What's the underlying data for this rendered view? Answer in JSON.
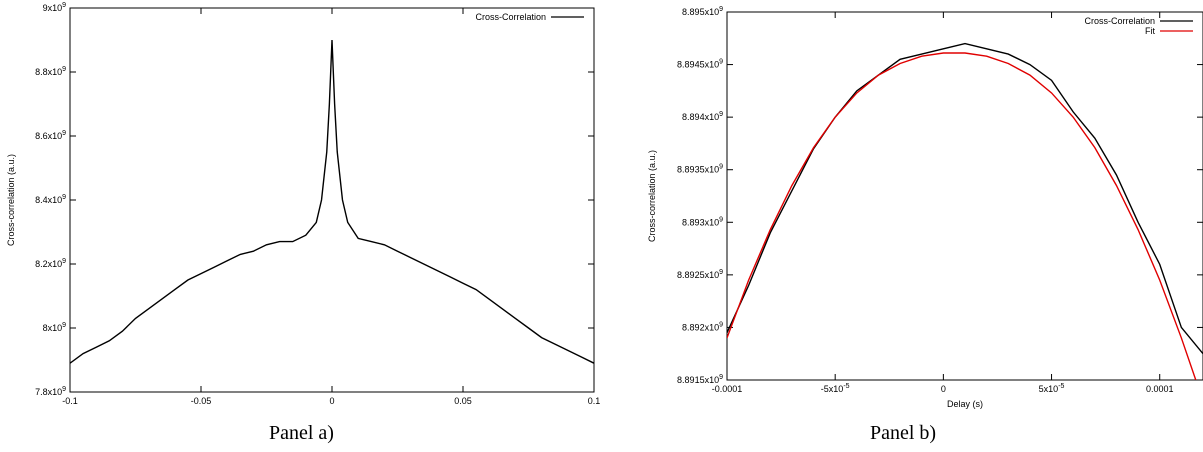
{
  "chart_data": [
    {
      "type": "line",
      "caption": "Panel a)",
      "xlabel": "",
      "ylabel": "Cross-correlation (a.u.)",
      "xlim": [
        -0.1,
        0.1
      ],
      "ylim": [
        7800000000.0,
        9000000000.0
      ],
      "xticks": [
        "-0.1",
        "-0.05",
        "0",
        "0.05",
        "0.1"
      ],
      "yticks": [
        {
          "m": "7.8x10",
          "e": "9"
        },
        {
          "m": "8x10",
          "e": "9"
        },
        {
          "m": "8.2x10",
          "e": "9"
        },
        {
          "m": "8.4x10",
          "e": "9"
        },
        {
          "m": "8.6x10",
          "e": "9"
        },
        {
          "m": "8.8x10",
          "e": "9"
        },
        {
          "m": "9x10",
          "e": "9"
        }
      ],
      "legend": "top-right",
      "series": [
        {
          "name": "Cross-Correlation",
          "color": "#000000",
          "x": [
            -0.1,
            -0.095,
            -0.09,
            -0.085,
            -0.08,
            -0.075,
            -0.07,
            -0.065,
            -0.06,
            -0.055,
            -0.05,
            -0.045,
            -0.04,
            -0.035,
            -0.03,
            -0.025,
            -0.02,
            -0.015,
            -0.01,
            -0.006,
            -0.004,
            -0.002,
            -0.001,
            0,
            0.001,
            0.002,
            0.004,
            0.006,
            0.01,
            0.015,
            0.02,
            0.025,
            0.03,
            0.035,
            0.04,
            0.045,
            0.05,
            0.055,
            0.06,
            0.065,
            0.07,
            0.075,
            0.08,
            0.085,
            0.09,
            0.095,
            0.1
          ],
          "y": [
            7890000000.0,
            7920000000.0,
            7940000000.0,
            7960000000.0,
            7990000000.0,
            8030000000.0,
            8060000000.0,
            8090000000.0,
            8120000000.0,
            8150000000.0,
            8170000000.0,
            8190000000.0,
            8210000000.0,
            8230000000.0,
            8240000000.0,
            8260000000.0,
            8270000000.0,
            8270000000.0,
            8290000000.0,
            8330000000.0,
            8400000000.0,
            8550000000.0,
            8700000000.0,
            8900000000.0,
            8700000000.0,
            8550000000.0,
            8400000000.0,
            8330000000.0,
            8280000000.0,
            8270000000.0,
            8260000000.0,
            8240000000.0,
            8220000000.0,
            8200000000.0,
            8180000000.0,
            8160000000.0,
            8140000000.0,
            8120000000.0,
            8090000000.0,
            8060000000.0,
            8030000000.0,
            8000000000.0,
            7970000000.0,
            7950000000.0,
            7930000000.0,
            7910000000.0,
            7890000000.0
          ]
        }
      ]
    },
    {
      "type": "line",
      "caption": "Panel b)",
      "xlabel": "Delay (s)",
      "ylabel": "Cross-correlation (a.u.)",
      "xlim": [
        -0.0001,
        0.00012
      ],
      "ylim": [
        8891500000.0,
        8895000000.0
      ],
      "xticks": [
        {
          "v": -0.0001,
          "m": "-0.0001",
          "e": ""
        },
        {
          "v": -5e-05,
          "m": "-5x10",
          "e": "-5"
        },
        {
          "v": 0,
          "m": "0",
          "e": ""
        },
        {
          "v": 5e-05,
          "m": "5x10",
          "e": "-5"
        },
        {
          "v": 0.0001,
          "m": "0.0001",
          "e": ""
        }
      ],
      "yticks": [
        {
          "m": "8.8915x10",
          "e": "9"
        },
        {
          "m": "8.892x10",
          "e": "9"
        },
        {
          "m": "8.8925x10",
          "e": "9"
        },
        {
          "m": "8.893x10",
          "e": "9"
        },
        {
          "m": "8.8935x10",
          "e": "9"
        },
        {
          "m": "8.894x10",
          "e": "9"
        },
        {
          "m": "8.8945x10",
          "e": "9"
        },
        {
          "m": "8.895x10",
          "e": "9"
        }
      ],
      "legend": "top-right",
      "series": [
        {
          "name": "Cross-Correlation",
          "color": "#000000",
          "x": [
            -0.0001,
            -9e-05,
            -8e-05,
            -7e-05,
            -6e-05,
            -5e-05,
            -4e-05,
            -3e-05,
            -2e-05,
            -1e-05,
            0,
            1e-05,
            2e-05,
            3e-05,
            4e-05,
            5e-05,
            6e-05,
            7e-05,
            8e-05,
            9e-05,
            0.0001,
            0.00011,
            0.00012
          ],
          "y": [
            8891950000.0,
            8892400000.0,
            8892900000.0,
            8893300000.0,
            8893700000.0,
            8894000000.0,
            8894250000.0,
            8894400000.0,
            8894550000.0,
            8894600000.0,
            8894650000.0,
            8894700000.0,
            8894650000.0,
            8894600000.0,
            8894500000.0,
            8894350000.0,
            8894050000.0,
            8893800000.0,
            8893450000.0,
            8893000000.0,
            8892600000.0,
            8892000000.0,
            8891750000.0
          ]
        },
        {
          "name": "Fit",
          "color": "#e00000",
          "x": [
            -0.0001,
            -9e-05,
            -8e-05,
            -7e-05,
            -6e-05,
            -5e-05,
            -4e-05,
            -3e-05,
            -2e-05,
            -1e-05,
            0,
            1e-05,
            2e-05,
            3e-05,
            4e-05,
            5e-05,
            6e-05,
            7e-05,
            8e-05,
            9e-05,
            0.0001,
            0.00011,
            0.00012
          ],
          "y": [
            8891900000.0,
            8892450000.0,
            8892930000.0,
            8893350000.0,
            8893710000.0,
            8894000000.0,
            8894230000.0,
            8894400000.0,
            8894510000.0,
            8894580000.0,
            8894610000.0,
            8894610000.0,
            8894580000.0,
            8894510000.0,
            8894400000.0,
            8894230000.0,
            8894000000.0,
            8893710000.0,
            8893350000.0,
            8892930000.0,
            8892450000.0,
            8891900000.0,
            8891300000.0
          ]
        }
      ]
    }
  ]
}
